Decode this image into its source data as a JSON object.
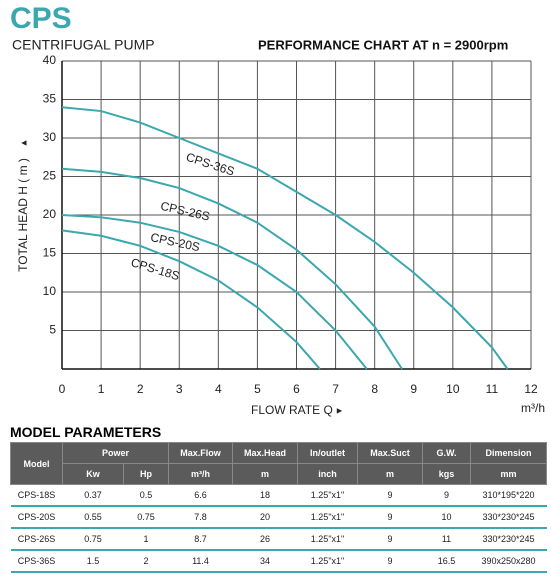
{
  "header": {
    "brand": "CPS",
    "subtitle": "CENTRIFUGAL PUMP"
  },
  "chart_data": {
    "type": "line",
    "title": "PERFORMANCE CHART AT n = 2900rpm",
    "y_label": "TOTAL HEAD H ( m )",
    "x_label": "FLOW RATE Q",
    "x_unit": "m³/h",
    "xlim": [
      0,
      12
    ],
    "xticks": [
      0,
      1,
      2,
      3,
      4,
      5,
      6,
      7,
      8,
      9,
      10,
      11,
      12
    ],
    "ylim": [
      0,
      40
    ],
    "yticks": [
      5,
      10,
      15,
      20,
      25,
      30,
      35,
      40
    ],
    "grid": true,
    "series": [
      {
        "name": "CPS-36S",
        "color": "#3ba7af",
        "x": [
          0,
          1,
          2,
          3,
          4,
          5,
          6,
          7,
          8,
          9,
          10,
          11,
          11.4
        ],
        "values": [
          34,
          33.5,
          32,
          30,
          28,
          26,
          23,
          20,
          16.5,
          12.5,
          8,
          2.8,
          0
        ]
      },
      {
        "name": "CPS-26S",
        "color": "#3ba7af",
        "x": [
          0,
          1,
          2,
          3,
          4,
          5,
          6,
          7,
          8,
          8.7
        ],
        "values": [
          26,
          25.6,
          24.8,
          23.5,
          21.5,
          19,
          15.5,
          11,
          5.5,
          0
        ]
      },
      {
        "name": "CPS-20S",
        "color": "#3ba7af",
        "x": [
          0,
          1,
          2,
          3,
          4,
          5,
          6,
          7,
          7.8
        ],
        "values": [
          20,
          19.7,
          19,
          17.8,
          16,
          13.5,
          10,
          5,
          0
        ]
      },
      {
        "name": "CPS-18S",
        "color": "#3ba7af",
        "x": [
          0,
          1,
          2,
          3,
          4,
          5,
          6,
          6.6
        ],
        "values": [
          18,
          17.3,
          16,
          14,
          11.5,
          8,
          3.5,
          0
        ]
      }
    ]
  },
  "table": {
    "title": "MODEL PARAMETERS",
    "header": [
      "Model",
      "Power",
      "Max.Flow",
      "Max.Head",
      "In/outlet",
      "Max.Suct",
      "G.W.",
      "Dimension"
    ],
    "subheader": [
      "Kw",
      "Hp",
      "m³/h",
      "m",
      "inch",
      "m",
      "kgs",
      "mm"
    ],
    "rows": [
      [
        "CPS-18S",
        "0.37",
        "0.5",
        "6.6",
        "18",
        "1.25\"x1\"",
        "9",
        "9",
        "310*195*220"
      ],
      [
        "CPS-20S",
        "0.55",
        "0.75",
        "7.8",
        "20",
        "1.25\"x1\"",
        "9",
        "10",
        "330*230*245"
      ],
      [
        "CPS-26S",
        "0.75",
        "1",
        "8.7",
        "26",
        "1.25\"x1\"",
        "9",
        "11",
        "330*230*245"
      ],
      [
        "CPS-36S",
        "1.5",
        "2",
        "11.4",
        "34",
        "1.25\"x1\"",
        "9",
        "16.5",
        "390x250x280"
      ]
    ]
  }
}
